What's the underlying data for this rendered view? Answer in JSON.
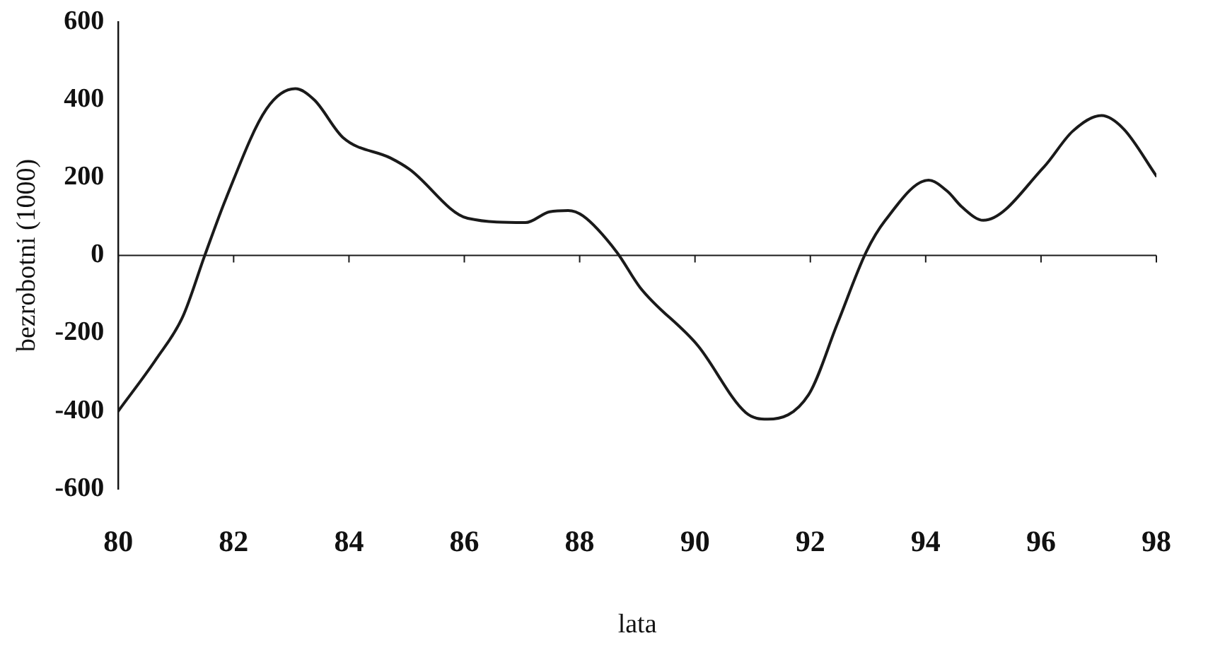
{
  "chart_data": {
    "type": "line",
    "xlabel": "lata",
    "ylabel": "bezrobotni (1000)",
    "x": [
      80,
      80.66,
      81.12,
      81.5,
      81.87,
      82.57,
      83.07,
      83.4,
      83.9,
      84.72,
      85.05,
      86.06,
      87.06,
      87.48,
      87.8,
      88.06,
      88.64,
      89.05,
      90.05,
      90.88,
      91.26,
      91.97,
      92.47,
      92.97,
      93.3,
      94.05,
      94.38,
      94.63,
      95,
      96.05,
      96.55,
      97.05,
      97.43,
      98
    ],
    "series": [
      {
        "color": "#1a1a1a",
        "values": [
          -400,
          -266,
          -157,
          0,
          147,
          376,
          428,
          399,
          302,
          250,
          221,
          95,
          84,
          112,
          115,
          101,
          9,
          -83,
          -232,
          -404,
          -421,
          -358,
          -175,
          9,
          90,
          193,
          164,
          124,
          90,
          227,
          319,
          359,
          325,
          204
        ]
      }
    ],
    "xlim": [
      80,
      98
    ],
    "xticks": [
      80,
      82,
      84,
      86,
      88,
      90,
      92,
      94,
      96,
      98
    ],
    "ylim": [
      -600,
      600
    ],
    "yticks": [
      -600,
      -400,
      -200,
      0,
      200,
      400,
      600
    ],
    "ref_lines": [
      {
        "axis": "y",
        "value": 0,
        "color": "#1a1a1a"
      }
    ],
    "grid": false,
    "legend": false,
    "marker": "none",
    "line_style": "solid"
  }
}
